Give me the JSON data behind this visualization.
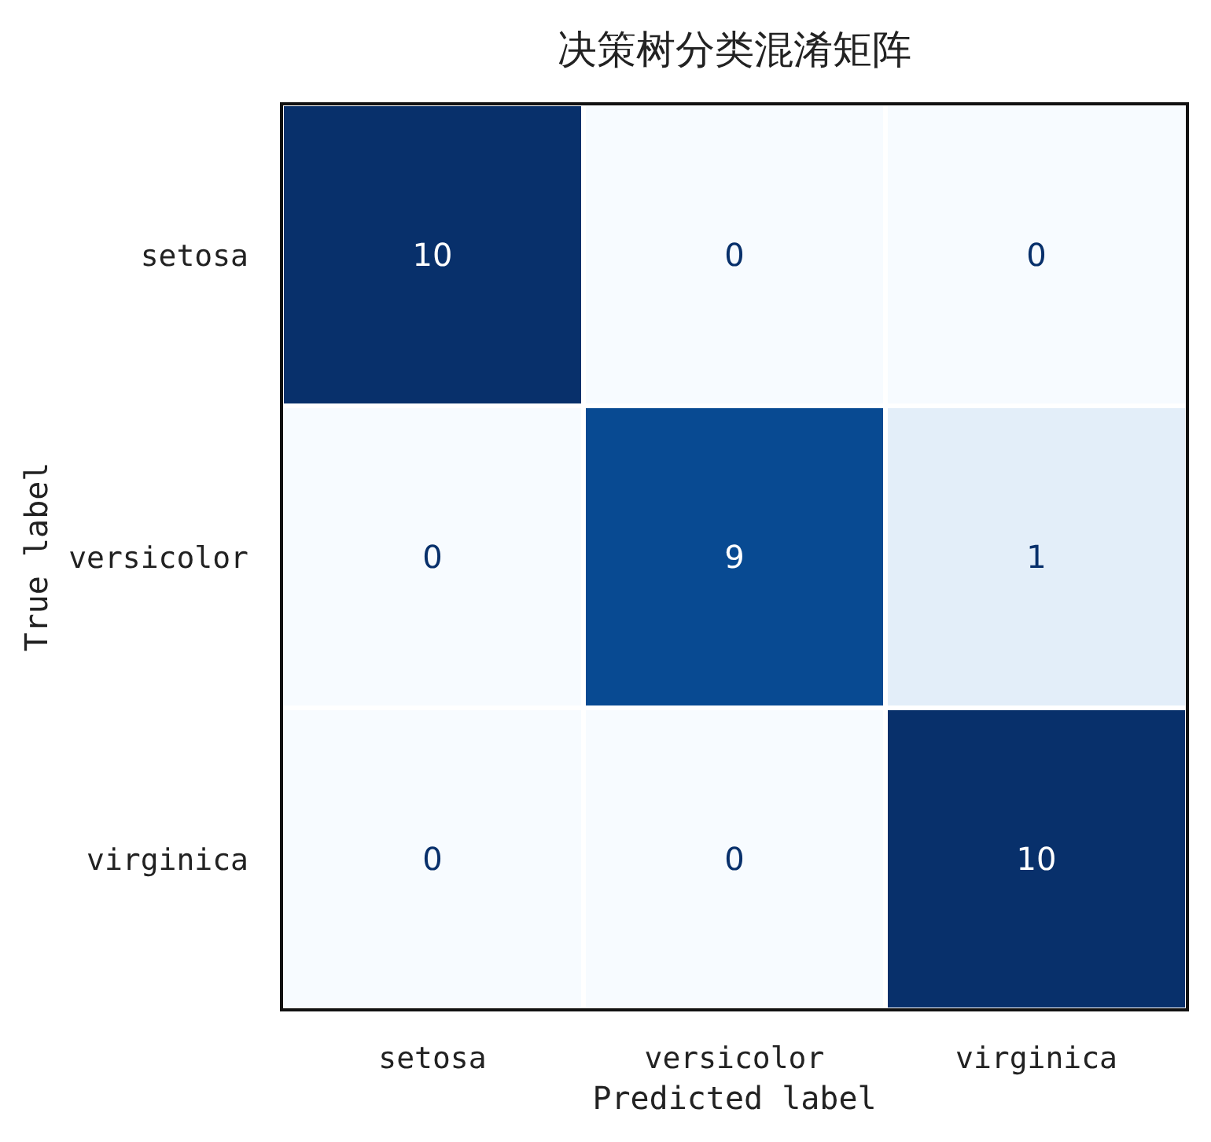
{
  "chart_data": {
    "type": "heatmap",
    "title": "决策树分类混淆矩阵",
    "xlabel": "Predicted label",
    "ylabel": "True label",
    "categories": [
      "setosa",
      "versicolor",
      "virginica"
    ],
    "y_categories": [
      "setosa",
      "versicolor",
      "virginica"
    ],
    "cells": [
      [
        10,
        0,
        0
      ],
      [
        0,
        9,
        1
      ],
      [
        0,
        0,
        10
      ]
    ],
    "data_labels": true
  }
}
